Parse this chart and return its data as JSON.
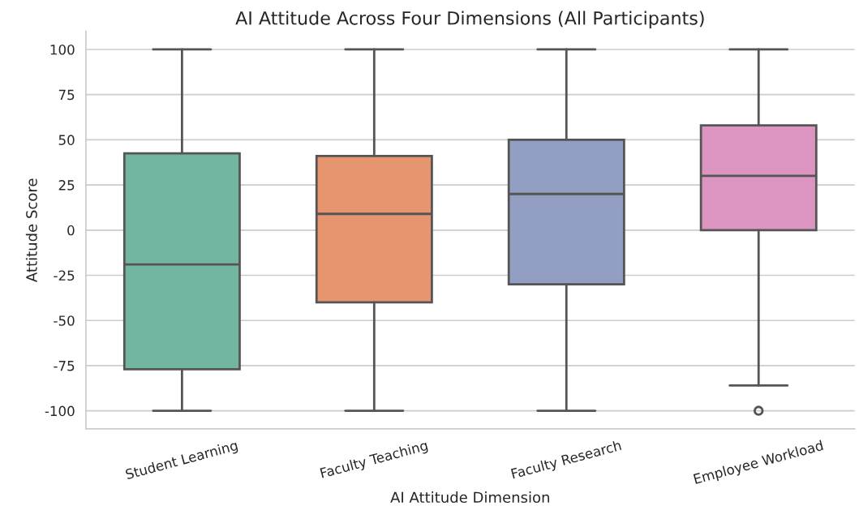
{
  "chart_data": {
    "type": "box",
    "title": "AI Attitude Across Four Dimensions (All Participants)",
    "xlabel": "AI Attitude Dimension",
    "ylabel": "Attitude Score",
    "categories": [
      "Student Learning",
      "Faculty Teaching",
      "Faculty Research",
      "Employee Workload"
    ],
    "colors": [
      "#72b6a1",
      "#e6956f",
      "#929fc2",
      "#db95c0"
    ],
    "boxes": [
      {
        "low": -100,
        "q1": -77,
        "median": -19,
        "q3": 42.5,
        "high": 100
      },
      {
        "low": -100,
        "q1": -40,
        "median": 9,
        "q3": 41,
        "high": 100
      },
      {
        "low": -100,
        "q1": -30,
        "median": 20,
        "q3": 50,
        "high": 100
      },
      {
        "low": -86,
        "q1": 0,
        "median": 30,
        "q3": 58,
        "high": 100,
        "outliers": [
          -100
        ]
      }
    ],
    "ylim": [
      -110,
      110
    ],
    "yticks": [
      -100,
      -75,
      -50,
      -25,
      0,
      25,
      50,
      75,
      100
    ],
    "grid": "y"
  }
}
